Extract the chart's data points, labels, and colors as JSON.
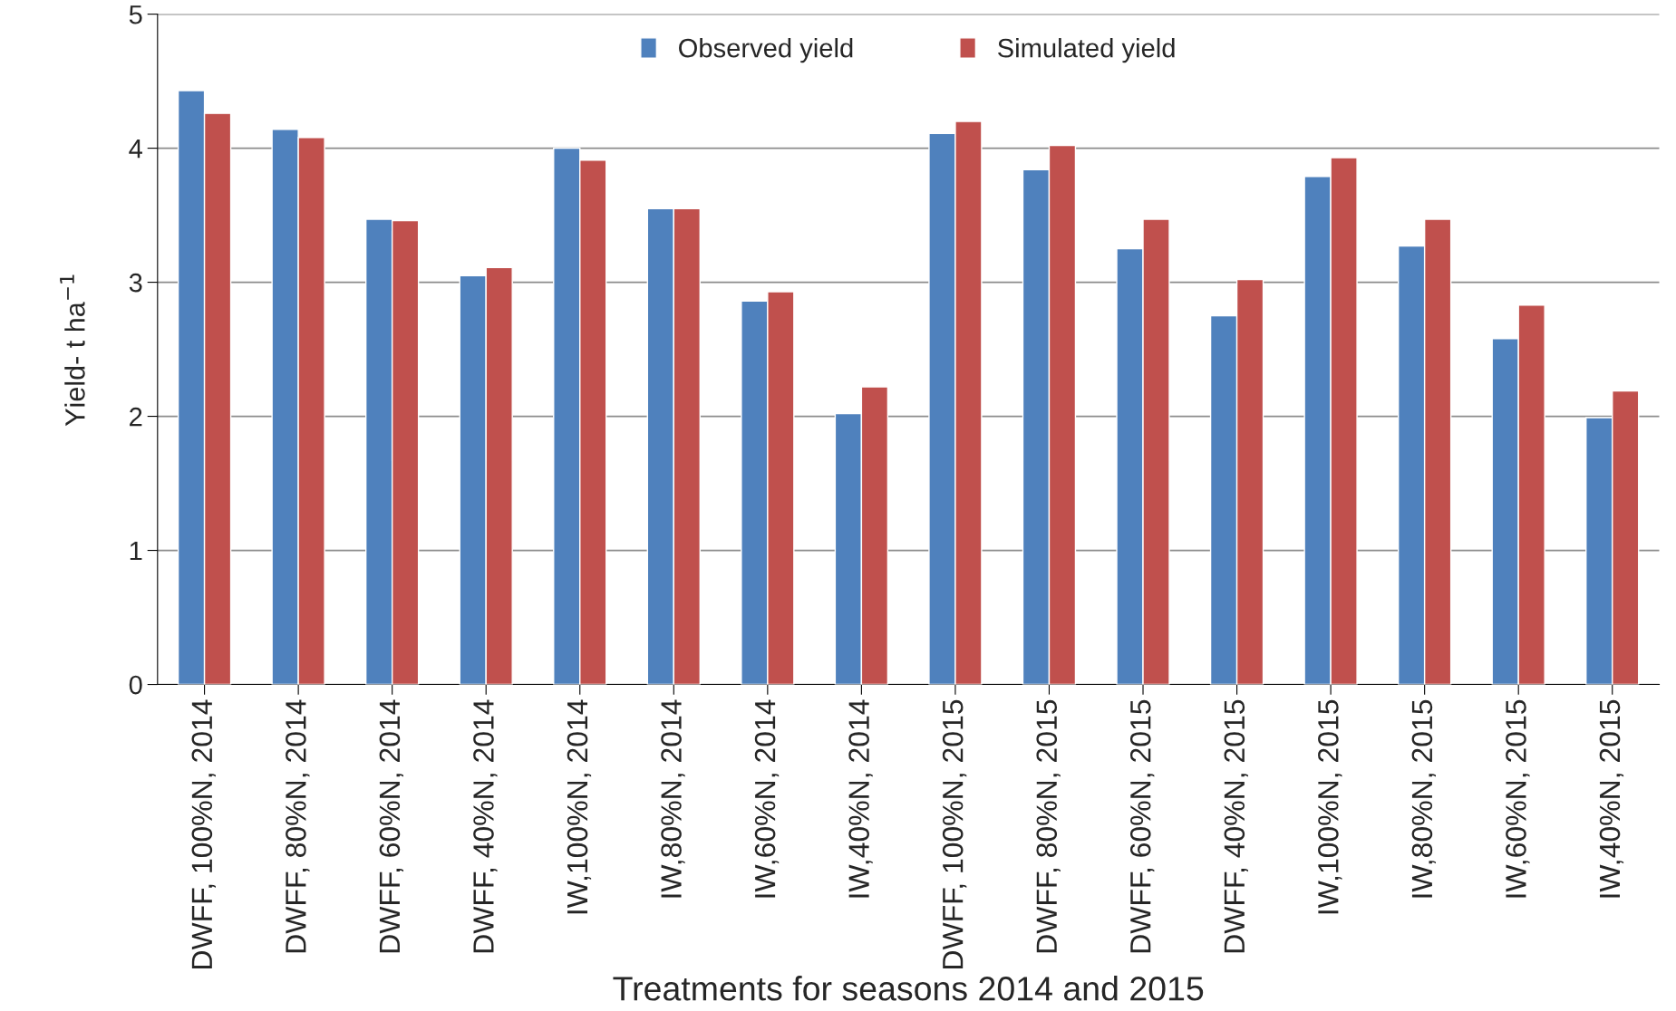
{
  "chart_data": {
    "type": "bar",
    "xlabel": "Treatments for seasons 2014 and 2015",
    "ylabel": "Yield- t ha$^{−1}$",
    "categories": [
      "DWFF, 100%N, 2014",
      "DWFF, 80%N, 2014",
      "DWFF, 60%N, 2014",
      "DWFF, 40%N, 2014",
      "IW,100%N, 2014",
      "IW,80%N, 2014",
      "IW,60%N, 2014",
      "IW,40%N, 2014",
      "DWFF, 100%N, 2015",
      "DWFF, 80%N, 2015",
      "DWFF, 60%N, 2015",
      "DWFF, 40%N, 2015",
      "IW,100%N, 2015",
      "IW,80%N, 2015",
      "IW,60%N, 2015",
      "IW,40%N, 2015"
    ],
    "series": [
      {
        "name": "Observed yield",
        "color": "#4f81bd",
        "values": [
          4.43,
          4.14,
          3.47,
          3.05,
          4.0,
          3.55,
          2.86,
          2.02,
          4.11,
          3.84,
          3.25,
          2.75,
          3.79,
          3.27,
          2.58,
          1.99
        ]
      },
      {
        "name": "Simulated yield",
        "color": "#c0504d",
        "values": [
          4.26,
          4.08,
          3.46,
          3.11,
          3.91,
          3.55,
          2.93,
          2.22,
          4.2,
          4.02,
          3.47,
          3.02,
          3.93,
          3.47,
          2.83,
          2.19
        ]
      }
    ],
    "ylim": [
      0,
      5
    ],
    "yticks": [
      0,
      1,
      2,
      3,
      4,
      5
    ],
    "grid": "y",
    "legend": "top"
  }
}
